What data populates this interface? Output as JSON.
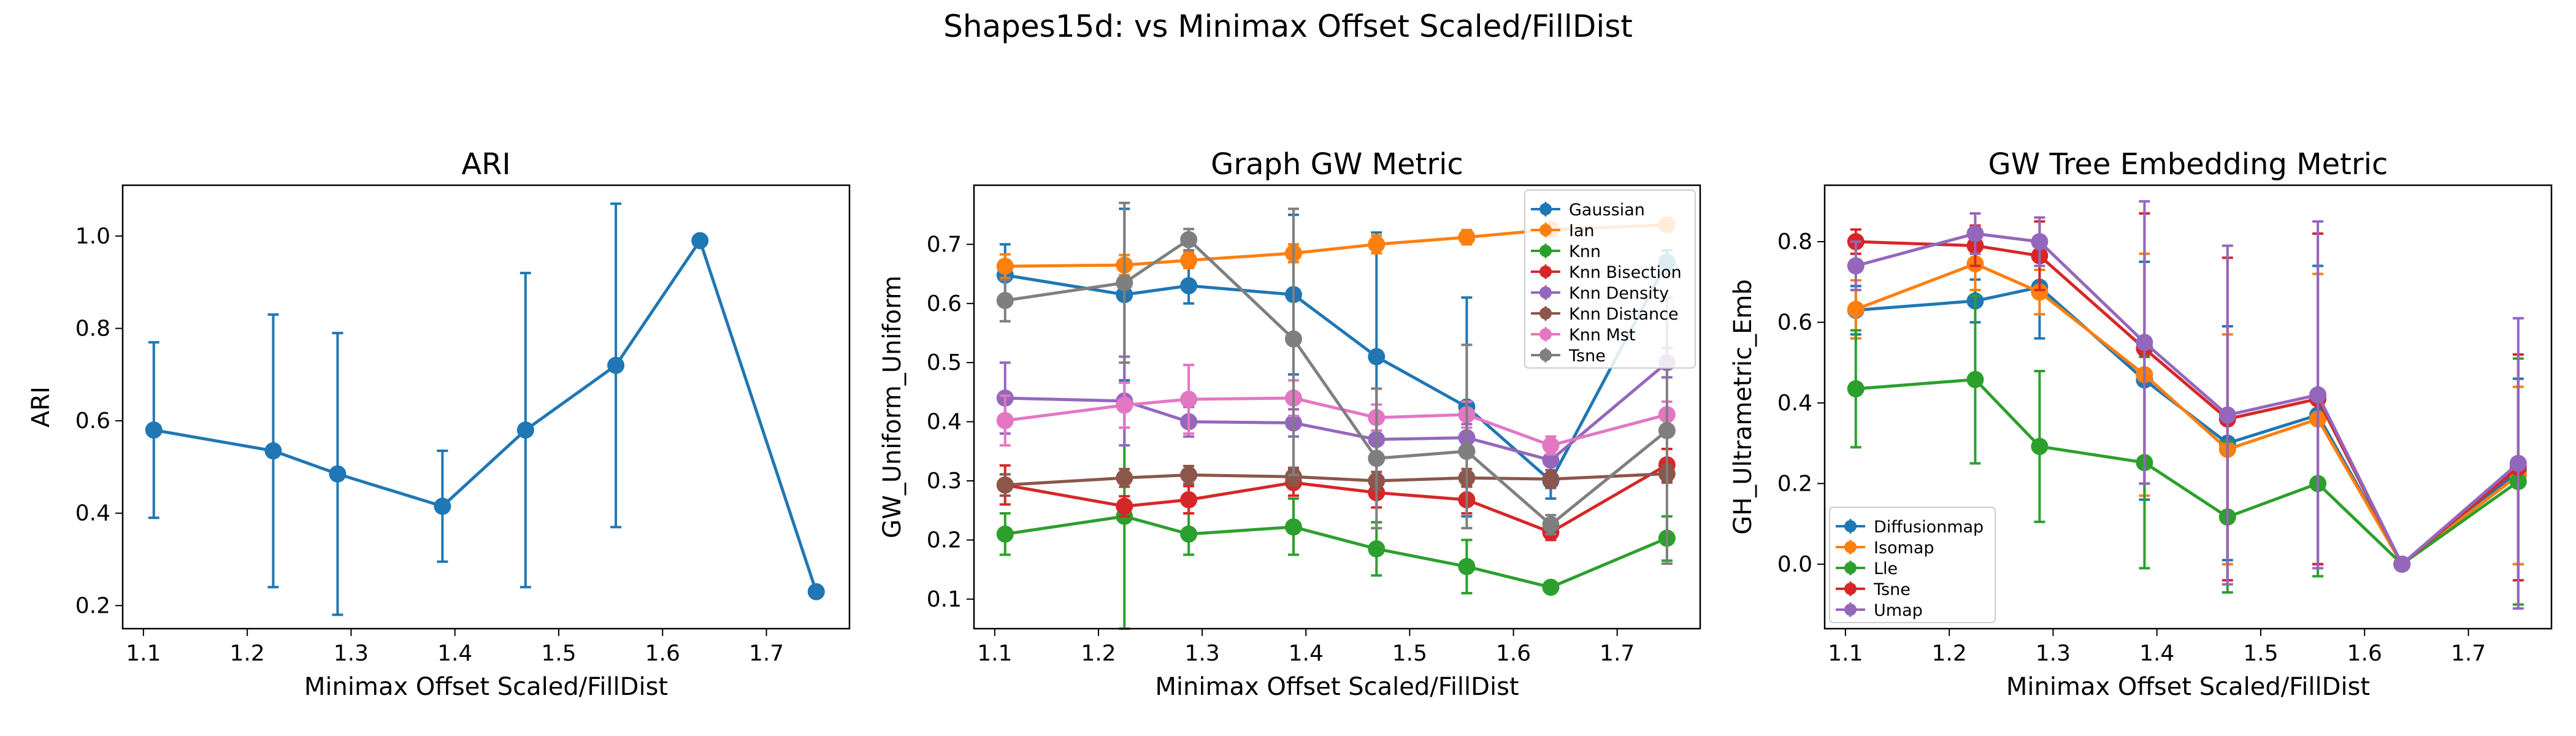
{
  "figure": {
    "suptitle": "Shapes15d: vs Minimax Offset Scaled/FillDist"
  },
  "chart_data": [
    {
      "type": "line",
      "title": "ARI",
      "xlabel": "Minimax Offset Scaled/FillDist",
      "ylabel": "ARI",
      "xlim": [
        1.08,
        1.78
      ],
      "ylim": [
        0.15,
        1.11
      ],
      "xticks": [
        "1.1",
        "1.2",
        "1.3",
        "1.4",
        "1.5",
        "1.6",
        "1.7"
      ],
      "yticks": [
        "0.2",
        "0.4",
        "0.6",
        "0.8",
        "1.0"
      ],
      "x": [
        1.11,
        1.225,
        1.287,
        1.388,
        1.468,
        1.555,
        1.636,
        1.748
      ],
      "legend": "none",
      "grid": false,
      "series": [
        {
          "name": "",
          "color": "#1f77b4",
          "values": [
            0.58,
            0.535,
            0.485,
            0.415,
            0.58,
            0.72,
            0.99,
            0.23
          ],
          "err_low": [
            0.39,
            0.24,
            0.18,
            0.295,
            0.24,
            0.37,
            0.99,
            0.23
          ],
          "err_high": [
            0.77,
            0.83,
            0.79,
            0.535,
            0.92,
            1.07,
            0.99,
            0.23
          ]
        }
      ]
    },
    {
      "type": "line",
      "title": "Graph GW Metric",
      "xlabel": "Minimax Offset Scaled/FillDist",
      "ylabel": "GW_Uniform_Uniform",
      "xlim": [
        1.08,
        1.78
      ],
      "ylim": [
        0.05,
        0.8
      ],
      "xticks": [
        "1.1",
        "1.2",
        "1.3",
        "1.4",
        "1.5",
        "1.6",
        "1.7"
      ],
      "yticks": [
        "0.1",
        "0.2",
        "0.3",
        "0.4",
        "0.5",
        "0.6",
        "0.7"
      ],
      "x": [
        1.11,
        1.225,
        1.287,
        1.388,
        1.468,
        1.555,
        1.636,
        1.748
      ],
      "legend": "top-right",
      "grid": false,
      "series": [
        {
          "name": "Gaussian",
          "color": "#1f77b4",
          "values": [
            0.648,
            0.615,
            0.63,
            0.615,
            0.51,
            0.425,
            0.3,
            0.67
          ],
          "err_low": [
            0.6,
            0.47,
            0.6,
            0.48,
            0.3,
            0.24,
            0.27,
            0.65
          ],
          "err_high": [
            0.7,
            0.76,
            0.66,
            0.75,
            0.72,
            0.61,
            0.33,
            0.69
          ]
        },
        {
          "name": "Ian",
          "color": "#ff7f0e",
          "values": [
            0.663,
            0.665,
            0.673,
            0.685,
            0.7,
            0.712,
            0.725,
            0.733
          ],
          "err_low": [
            0.643,
            0.648,
            0.66,
            0.67,
            0.685,
            0.7,
            0.715,
            0.725
          ],
          "err_high": [
            0.683,
            0.682,
            0.686,
            0.7,
            0.715,
            0.724,
            0.735,
            0.741
          ]
        },
        {
          "name": "Knn",
          "color": "#2ca02c",
          "values": [
            0.21,
            0.24,
            0.21,
            0.222,
            0.185,
            0.155,
            0.12,
            0.203
          ],
          "err_low": [
            0.175,
            0.05,
            0.175,
            0.175,
            0.14,
            0.11,
            0.115,
            0.165
          ],
          "err_high": [
            0.245,
            0.43,
            0.245,
            0.27,
            0.23,
            0.2,
            0.125,
            0.24
          ]
        },
        {
          "name": "Knn Bisection",
          "color": "#d62728",
          "values": [
            0.293,
            0.257,
            0.268,
            0.297,
            0.28,
            0.268,
            0.213,
            0.327
          ],
          "err_low": [
            0.26,
            0.24,
            0.245,
            0.275,
            0.255,
            0.245,
            0.2,
            0.3
          ],
          "err_high": [
            0.326,
            0.274,
            0.291,
            0.319,
            0.305,
            0.291,
            0.226,
            0.354
          ]
        },
        {
          "name": "Knn Density",
          "color": "#9467bd",
          "values": [
            0.44,
            0.435,
            0.4,
            0.398,
            0.37,
            0.373,
            0.335,
            0.5
          ],
          "err_low": [
            0.38,
            0.36,
            0.375,
            0.375,
            0.34,
            0.35,
            0.31,
            0.475
          ],
          "err_high": [
            0.5,
            0.51,
            0.425,
            0.421,
            0.4,
            0.396,
            0.36,
            0.525
          ]
        },
        {
          "name": "Knn Distance",
          "color": "#8c564b",
          "values": [
            0.293,
            0.305,
            0.31,
            0.307,
            0.3,
            0.305,
            0.303,
            0.312
          ],
          "err_low": [
            0.275,
            0.29,
            0.295,
            0.292,
            0.285,
            0.29,
            0.288,
            0.297
          ],
          "err_high": [
            0.311,
            0.32,
            0.325,
            0.322,
            0.315,
            0.32,
            0.318,
            0.327
          ]
        },
        {
          "name": "Knn Mst",
          "color": "#e377c2",
          "values": [
            0.402,
            0.428,
            0.438,
            0.44,
            0.407,
            0.412,
            0.36,
            0.412
          ],
          "err_low": [
            0.36,
            0.39,
            0.38,
            0.41,
            0.385,
            0.39,
            0.345,
            0.39
          ],
          "err_high": [
            0.444,
            0.466,
            0.496,
            0.47,
            0.429,
            0.434,
            0.375,
            0.434
          ]
        },
        {
          "name": "Tsne",
          "color": "#7f7f7f",
          "values": [
            0.605,
            0.635,
            0.708,
            0.54,
            0.338,
            0.35,
            0.226,
            0.385
          ],
          "err_low": [
            0.57,
            0.5,
            0.69,
            0.31,
            0.22,
            0.22,
            0.21,
            0.16
          ],
          "err_high": [
            0.64,
            0.77,
            0.726,
            0.76,
            0.456,
            0.53,
            0.242,
            0.61
          ]
        }
      ]
    },
    {
      "type": "line",
      "title": "GW Tree Embedding Metric",
      "xlabel": "Minimax Offset Scaled/FillDist",
      "ylabel": "GH_Ultrametric_Emb",
      "xlim": [
        1.08,
        1.78
      ],
      "ylim": [
        -0.16,
        0.94
      ],
      "xticks": [
        "1.1",
        "1.2",
        "1.3",
        "1.4",
        "1.5",
        "1.6",
        "1.7"
      ],
      "yticks": [
        "0.0",
        "0.2",
        "0.4",
        "0.6",
        "0.8"
      ],
      "x": [
        1.11,
        1.225,
        1.287,
        1.388,
        1.468,
        1.555,
        1.636,
        1.748
      ],
      "legend": "bottom-left",
      "grid": false,
      "series": [
        {
          "name": "Diffusionmap",
          "color": "#1f77b4",
          "values": [
            0.63,
            0.653,
            0.687,
            0.457,
            0.3,
            0.37,
            0.0,
            0.23
          ],
          "err_low": [
            0.57,
            0.6,
            0.56,
            0.16,
            0.01,
            0.0,
            0.0,
            0.0
          ],
          "err_high": [
            0.69,
            0.706,
            0.81,
            0.75,
            0.59,
            0.74,
            0.0,
            0.46
          ]
        },
        {
          "name": "Isomap",
          "color": "#ff7f0e",
          "values": [
            0.632,
            0.745,
            0.675,
            0.47,
            0.285,
            0.36,
            0.0,
            0.22
          ],
          "err_low": [
            0.56,
            0.68,
            0.62,
            0.17,
            0.0,
            0.0,
            0.0,
            0.0
          ],
          "err_high": [
            0.704,
            0.81,
            0.73,
            0.77,
            0.57,
            0.72,
            0.0,
            0.44
          ]
        },
        {
          "name": "Lle",
          "color": "#2ca02c",
          "values": [
            0.435,
            0.458,
            0.292,
            0.252,
            0.117,
            0.2,
            0.0,
            0.205
          ],
          "err_low": [
            0.29,
            0.25,
            0.105,
            -0.01,
            -0.07,
            -0.03,
            0.0,
            -0.1
          ],
          "err_high": [
            0.58,
            0.666,
            0.479,
            0.514,
            0.304,
            0.43,
            0.0,
            0.51
          ]
        },
        {
          "name": "Tsne",
          "color": "#d62728",
          "values": [
            0.8,
            0.79,
            0.765,
            0.535,
            0.36,
            0.41,
            0.0,
            0.24
          ],
          "err_low": [
            0.77,
            0.74,
            0.68,
            0.2,
            -0.04,
            0.0,
            0.0,
            -0.04
          ],
          "err_high": [
            0.83,
            0.84,
            0.85,
            0.87,
            0.76,
            0.82,
            0.0,
            0.52
          ]
        },
        {
          "name": "Umap",
          "color": "#9467bd",
          "values": [
            0.74,
            0.82,
            0.8,
            0.55,
            0.37,
            0.42,
            0.0,
            0.25
          ],
          "err_low": [
            0.68,
            0.77,
            0.74,
            0.2,
            -0.05,
            -0.01,
            0.0,
            -0.11
          ],
          "err_high": [
            0.8,
            0.87,
            0.86,
            0.9,
            0.79,
            0.85,
            0.0,
            0.61
          ]
        }
      ]
    }
  ]
}
